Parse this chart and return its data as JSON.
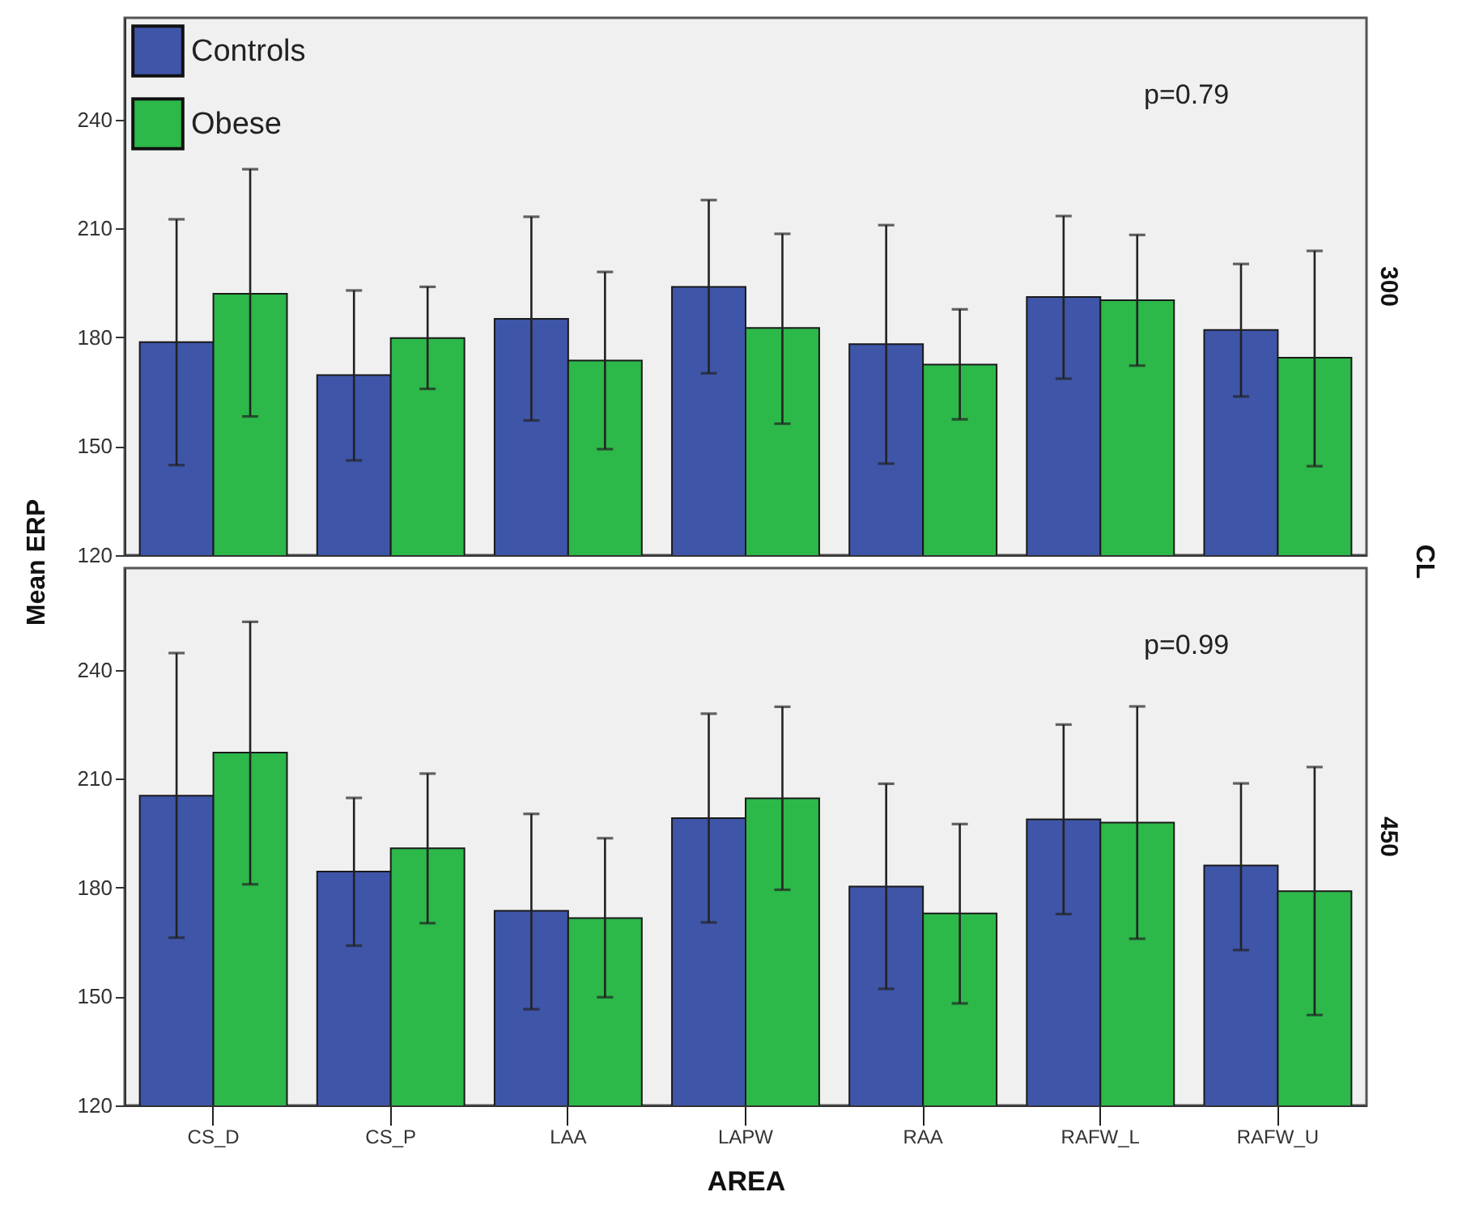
{
  "chart_data": [
    {
      "type": "bar",
      "categories": [
        null,
        null,
        null,
        null,
        null,
        null,
        null
      ],
      "ylabel": "Mean ERP",
      "y2label": "300",
      "ylim": [
        120,
        268
      ],
      "yticks": [
        120,
        150,
        180,
        210,
        240
      ],
      "legend": "top left",
      "tick_labels": "y",
      "annotations": [
        "p=0.79",
        "CL"
      ],
      "series": [
        {
          "name": "Controls",
          "color": "#3f55a8",
          "values": [
            178.7,
            169.6,
            185.1,
            193.9,
            178.1,
            191.1,
            182.0
          ],
          "errors": [
            [
              144.8,
              212.5
            ],
            [
              146.1,
              192.9
            ],
            [
              157.1,
              213.2
            ],
            [
              170.1,
              217.8
            ],
            [
              145.2,
              210.9
            ],
            [
              168.6,
              213.4
            ],
            [
              163.7,
              200.2
            ]
          ]
        },
        {
          "name": "Obese",
          "color": "#2db84a",
          "values": [
            192.0,
            179.8,
            173.6,
            182.6,
            172.5,
            190.2,
            174.4
          ],
          "errors": [
            [
              158.2,
              226.3
            ],
            [
              165.8,
              193.9
            ],
            [
              149.2,
              198.0
            ],
            [
              156.2,
              208.5
            ],
            [
              157.4,
              187.7
            ],
            [
              172.2,
              208.2
            ],
            [
              144.5,
              203.8
            ]
          ]
        }
      ]
    },
    {
      "type": "bar",
      "categories": [
        "CS_D",
        "CS_P",
        "LAA",
        "LAPW",
        "RAA",
        "RAFW_L",
        "RAFW_U"
      ],
      "xlabel": "AREA",
      "y2label": "450",
      "ylim": [
        120,
        268
      ],
      "yticks": [
        120,
        150,
        180,
        210,
        240
      ],
      "annotations": [
        "p=0.99"
      ],
      "series": [
        {
          "color": "#3f55a8",
          "values": [
            205.3,
            184.4,
            173.6,
            199.1,
            180.3,
            198.8,
            186.1
          ],
          "errors": [
            [
              166.2,
              244.6
            ],
            [
              164.0,
              204.7
            ],
            [
              146.5,
              200.3
            ],
            [
              170.4,
              227.9
            ],
            [
              152.1,
              208.6
            ],
            [
              172.7,
              224.9
            ],
            [
              162.8,
              208.7
            ]
          ]
        },
        {
          "color": "#2db84a",
          "values": [
            217.2,
            190.8,
            171.6,
            204.6,
            172.9,
            197.9,
            179.0
          ],
          "errors": [
            [
              180.9,
              253.2
            ],
            [
              170.2,
              211.4
            ],
            [
              149.8,
              193.6
            ],
            [
              179.4,
              229.8
            ],
            [
              148.1,
              197.5
            ],
            [
              165.9,
              229.9
            ],
            [
              144.9,
              213.2
            ]
          ]
        }
      ]
    }
  ]
}
